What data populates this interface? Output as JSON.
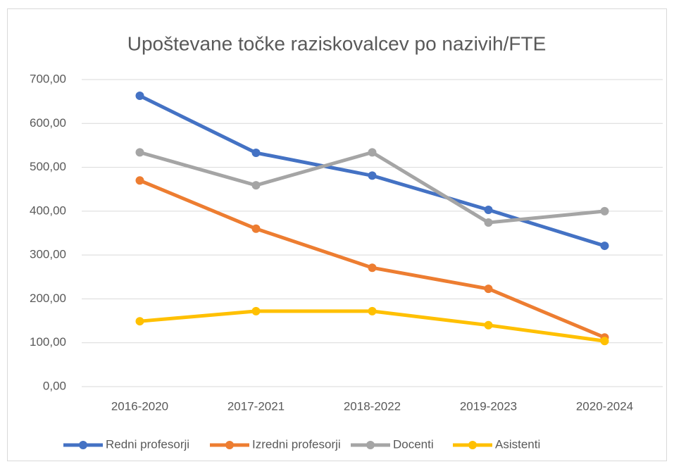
{
  "chart_data": {
    "type": "line",
    "title": "Upoštevane točke raziskovalcev po nazivih/FTE",
    "categories": [
      "2016-2020",
      "2017-2021",
      "2018-2022",
      "2019-2023",
      "2020-2024"
    ],
    "series": [
      {
        "name": "Redni profesorji",
        "color": "#4472c4",
        "values": [
          663,
          533,
          481,
          403,
          321
        ]
      },
      {
        "name": "Izredni profesorji",
        "color": "#ed7d31",
        "values": [
          470,
          360,
          271,
          223,
          112
        ]
      },
      {
        "name": "Docenti",
        "color": "#a5a5a5",
        "values": [
          534,
          459,
          534,
          374,
          400
        ]
      },
      {
        "name": "Asistenti",
        "color": "#ffc000",
        "values": [
          149,
          172,
          172,
          140,
          104
        ]
      }
    ],
    "ylim": [
      0,
      700
    ],
    "yticks": [
      {
        "value": 0,
        "label": "0,00"
      },
      {
        "value": 100,
        "label": "100,00"
      },
      {
        "value": 200,
        "label": "200,00"
      },
      {
        "value": 300,
        "label": "300,00"
      },
      {
        "value": 400,
        "label": "400,00"
      },
      {
        "value": 500,
        "label": "500,00"
      },
      {
        "value": 600,
        "label": "600,00"
      },
      {
        "value": 700,
        "label": "700,00"
      }
    ],
    "grid": true,
    "legend": "bottom"
  }
}
